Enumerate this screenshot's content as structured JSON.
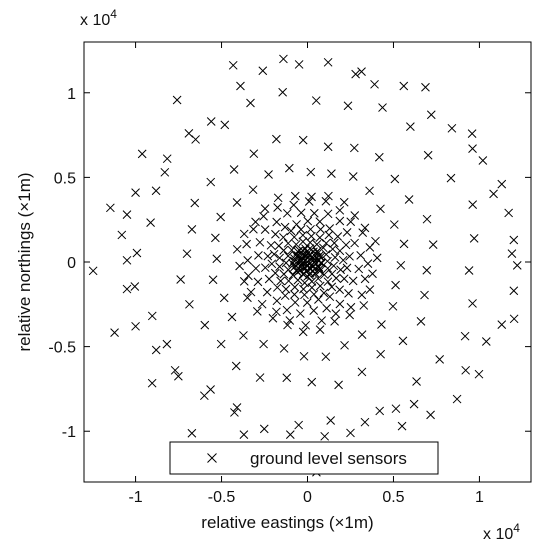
{
  "chart_data": {
    "type": "scatter",
    "xlabel": "relative eastings (×1m)",
    "ylabel": "relative northings (×1m)",
    "x_multiplier": "x 10",
    "x_multiplier_exp": "4",
    "y_multiplier": "x 10",
    "y_multiplier_exp": "4",
    "xlim": [
      -13000,
      13000
    ],
    "ylim": [
      -13000,
      13000
    ],
    "xticks": [
      -10000,
      -5000,
      0,
      5000,
      10000
    ],
    "xtick_labels": [
      "-1",
      "-0.5",
      "0",
      "0.5",
      "1"
    ],
    "yticks": [
      -10000,
      -5000,
      0,
      5000,
      10000
    ],
    "ytick_labels": [
      "-1",
      "-0.5",
      "0",
      "0.5",
      "1"
    ],
    "grid": false,
    "legend_position": "bottom-center",
    "marker": "x",
    "marker_color": "#000000",
    "series": [
      {
        "name": "ground level sensors",
        "rings": [
          {
            "radius": 400,
            "count": 10
          },
          {
            "radius": 800,
            "count": 14
          },
          {
            "radius": 1200,
            "count": 18
          },
          {
            "radius": 1600,
            "count": 20
          },
          {
            "radius": 2000,
            "count": 22
          },
          {
            "radius": 2400,
            "count": 22
          },
          {
            "radius": 3000,
            "count": 24
          },
          {
            "radius": 3600,
            "count": 24
          },
          {
            "radius": 4000,
            "count": 26
          },
          {
            "radius": 5500,
            "count": 28
          },
          {
            "radius": 7200,
            "count": 30
          },
          {
            "radius": 9800,
            "count": 32
          },
          {
            "radius": 12000,
            "count": 20
          }
        ],
        "points": [
          [
            -1400,
            12000
          ],
          [
            1200,
            11800
          ],
          [
            -2600,
            11300
          ],
          [
            2800,
            11100
          ],
          [
            -3900,
            10400
          ],
          [
            3900,
            10500
          ],
          [
            5600,
            10400
          ],
          [
            -5600,
            8300
          ],
          [
            7200,
            8700
          ],
          [
            -6900,
            7600
          ],
          [
            8400,
            7900
          ],
          [
            -8300,
            5300
          ],
          [
            9600,
            6700
          ],
          [
            10200,
            6000
          ],
          [
            -10000,
            4100
          ],
          [
            11300,
            4600
          ],
          [
            -10500,
            2800
          ],
          [
            11700,
            2900
          ],
          [
            -10800,
            1600
          ],
          [
            12000,
            1300
          ],
          [
            -10500,
            100
          ],
          [
            12200,
            -200
          ],
          [
            -10500,
            -1600
          ],
          [
            12000,
            -1700
          ],
          [
            -10000,
            -3800
          ],
          [
            11300,
            -3700
          ],
          [
            -8800,
            -5200
          ],
          [
            10400,
            -4700
          ],
          [
            -7700,
            -6400
          ],
          [
            9200,
            -6400
          ],
          [
            -6000,
            -7900
          ],
          [
            8700,
            -8100
          ],
          [
            -4100,
            -8600
          ],
          [
            6200,
            -8400
          ],
          [
            -3700,
            -10200
          ],
          [
            5500,
            -9700
          ],
          [
            -1000,
            -10200
          ],
          [
            1000,
            -10300
          ],
          [
            2500,
            -10100
          ],
          [
            4200,
            -8800
          ]
        ]
      }
    ]
  }
}
